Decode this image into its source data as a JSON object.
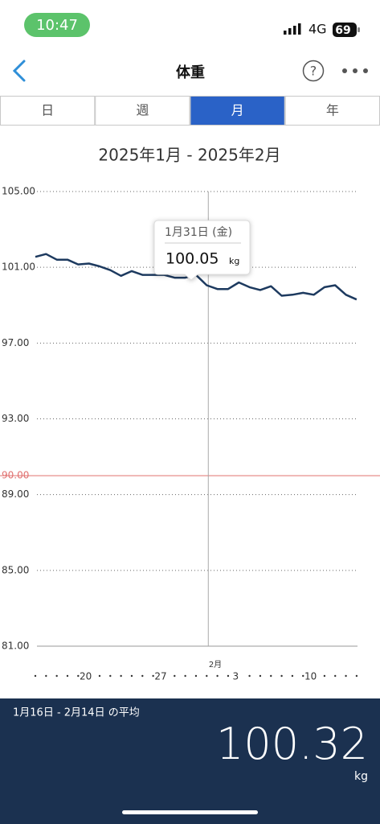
{
  "status_bar": {
    "time": "10:47",
    "network": "4G",
    "battery": "69"
  },
  "nav": {
    "title": "体重",
    "help": "?"
  },
  "tabs": {
    "items": [
      "日",
      "週",
      "月",
      "年"
    ],
    "selected": 2
  },
  "chart_data": {
    "type": "line",
    "title": "2025年1月 - 2025年2月",
    "categories": [
      null,
      null,
      null,
      null,
      null,
      "20",
      null,
      null,
      null,
      null,
      null,
      null,
      "27",
      null,
      null,
      null,
      null,
      null,
      null,
      "3",
      null,
      null,
      null,
      null,
      null,
      null,
      "10",
      null,
      null,
      null,
      null
    ],
    "values": [
      101.55,
      101.7,
      101.4,
      101.4,
      101.15,
      101.2,
      101.05,
      100.85,
      100.55,
      100.8,
      100.6,
      100.6,
      100.6,
      100.45,
      100.45,
      100.6,
      100.05,
      99.85,
      99.85,
      100.2,
      99.95,
      99.8,
      100.0,
      99.5,
      99.55,
      99.65,
      99.55,
      99.95,
      100.05,
      99.55,
      99.3
    ],
    "color": "#1d3a5f",
    "ylim": [
      81,
      105
    ],
    "yticks": [
      {
        "value": 81,
        "label": "81.00"
      },
      {
        "value": 85,
        "label": "85.00"
      },
      {
        "value": 89,
        "label": "89.00"
      },
      {
        "value": 93,
        "label": "93.00"
      },
      {
        "value": 97,
        "label": "97.00"
      },
      {
        "value": 101,
        "label": "101.00"
      },
      {
        "value": 105,
        "label": "105.00"
      }
    ],
    "grid": true,
    "reference_line": {
      "value": 90,
      "label": "90.00",
      "color": "#e0706f"
    },
    "month_label": "2月",
    "tooltip": {
      "date": "1月31日 (金)",
      "unit": "kg"
    }
  },
  "summary": {
    "label": "1月16日 - 2月14日 の平均",
    "value": "100.32",
    "unit": "kg"
  }
}
